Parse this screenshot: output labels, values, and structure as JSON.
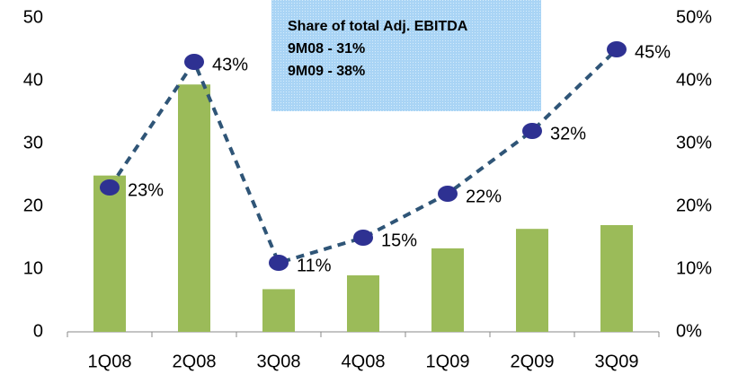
{
  "chart_data": {
    "type": "bar_line",
    "categories": [
      "1Q08",
      "2Q08",
      "3Q08",
      "4Q08",
      "1Q09",
      "2Q09",
      "3Q09"
    ],
    "series": [
      {
        "type": "bar",
        "color": "#9bbb59",
        "values": [
          24.9,
          39.4,
          6.8,
          9.0,
          13.3,
          16.4,
          17.0
        ]
      },
      {
        "type": "line",
        "axis": "y2",
        "color": "#2f5577",
        "marker_color": "#2e3192",
        "values": [
          23,
          43,
          11,
          15,
          22,
          32,
          45
        ],
        "value_labels": [
          "23%",
          "43%",
          "11%",
          "15%",
          "22%",
          "32%",
          "45%"
        ]
      }
    ],
    "ylim": [
      0,
      50
    ],
    "yticks": [
      0,
      10,
      20,
      30,
      40,
      50
    ],
    "y2lim": [
      0,
      50
    ],
    "y2ticks": [
      {
        "value": 0,
        "label": "0%"
      },
      {
        "value": 10,
        "label": "10%"
      },
      {
        "value": 20,
        "label": "20%"
      },
      {
        "value": 30,
        "label": "30%"
      },
      {
        "value": 40,
        "label": "40%"
      },
      {
        "value": 50,
        "label": "50%"
      }
    ],
    "annotation": [
      "Share of total Adj. EBITDA",
      "9M08 - 31%",
      "9M09 - 38%"
    ]
  }
}
